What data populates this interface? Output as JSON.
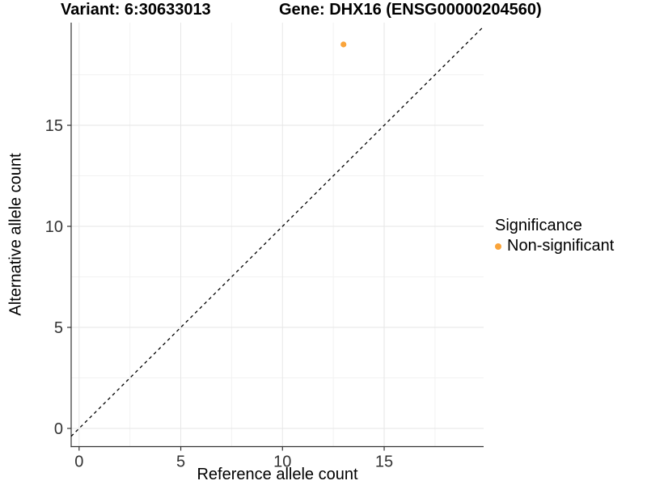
{
  "chart_data": {
    "type": "scatter",
    "title_left": "Variant: 6:30633013",
    "title_right": "Gene: DHX16 (ENSG00000204560)",
    "xlabel": "Reference allele count",
    "ylabel": "Alternative allele count",
    "xlim": [
      -0.39,
      19.89
    ],
    "ylim": [
      -0.9,
      20.08
    ],
    "x_ticks": [
      0,
      5,
      10,
      15
    ],
    "y_ticks": [
      0,
      5,
      10,
      15
    ],
    "x_minor": [
      2.5,
      7.5,
      12.5,
      17.5
    ],
    "y_minor": [
      2.5,
      7.5,
      12.5,
      17.5
    ],
    "grid": true,
    "legend_position": "right",
    "series": [
      {
        "name": "Non-significant",
        "color": "#FAA43A",
        "points": [
          {
            "x": 13,
            "y": 19
          }
        ]
      }
    ],
    "reference_line": {
      "type": "abline",
      "slope": 1,
      "intercept": 0,
      "style": "dashed",
      "color": "#000000"
    },
    "legend": {
      "title": "Significance",
      "items": [
        {
          "label": "Non-significant",
          "color": "#FAA43A"
        }
      ]
    },
    "colors": {
      "point": "#FAA43A",
      "axis_line": "#333333",
      "tick_label": "#333333",
      "grid_major": "#e6e6e6",
      "grid_minor": "#f2f2f2",
      "background": "#ffffff"
    }
  }
}
